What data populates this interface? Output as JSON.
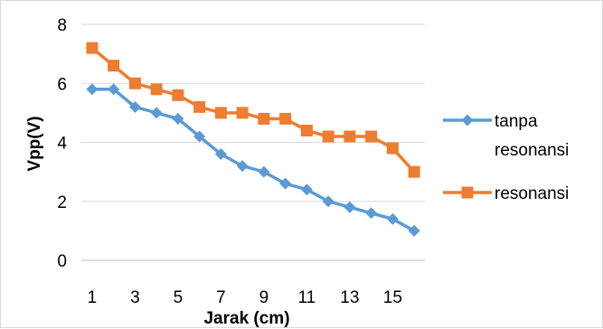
{
  "chart_data": {
    "type": "line",
    "title": "",
    "xlabel": "Jarak (cm)",
    "ylabel": "Vpp(V)",
    "ylim": [
      0,
      8
    ],
    "yticks": [
      "0",
      "2",
      "4",
      "6",
      "8"
    ],
    "x": [
      1,
      2,
      3,
      4,
      5,
      6,
      7,
      8,
      9,
      10,
      11,
      12,
      13,
      14,
      15,
      16
    ],
    "xtick_labels": [
      "1",
      "3",
      "5",
      "7",
      "9",
      "11",
      "13",
      "15"
    ],
    "grid": "horizontal",
    "legend": "right",
    "series": [
      {
        "name": "tanpa resonansi",
        "legend_lines": [
          "tanpa",
          "resonansi"
        ],
        "color": "#5b9bd5",
        "marker": "diamond",
        "values": [
          5.8,
          5.8,
          5.2,
          5.0,
          4.8,
          4.2,
          3.6,
          3.2,
          3.0,
          2.6,
          2.4,
          2.0,
          1.8,
          1.6,
          1.4,
          1.0
        ]
      },
      {
        "name": "resonansi",
        "legend_lines": [
          "resonansi"
        ],
        "color": "#ed7d31",
        "marker": "square",
        "values": [
          7.2,
          6.6,
          6.0,
          5.8,
          5.6,
          5.2,
          5.0,
          5.0,
          4.8,
          4.8,
          4.4,
          4.2,
          4.2,
          4.2,
          3.8,
          3.0
        ]
      }
    ]
  }
}
